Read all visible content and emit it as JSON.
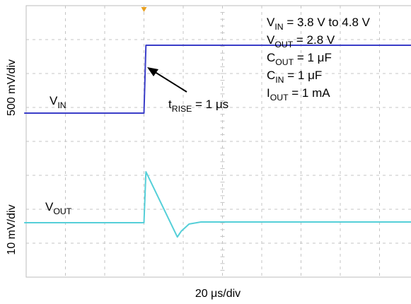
{
  "chart_data": {
    "type": "line",
    "x_scale": "20 μs/div",
    "x_divisions": 10,
    "y_divisions": 8,
    "grid": true,
    "trigger_marker_color": "#e8a020",
    "panels": [
      {
        "name": "VIN",
        "scale_label": "500 mV/div",
        "label": {
          "main": "V",
          "sub": "IN"
        },
        "color": "#3a3dc8",
        "x_unit": "us",
        "y_unit": "V",
        "x": [
          -50,
          11,
          12,
          150
        ],
        "y": [
          3.8,
          3.8,
          4.8,
          4.8
        ]
      },
      {
        "name": "VOUT",
        "scale_label": "10 mV/div",
        "label": {
          "main": "V",
          "sub": "OUT"
        },
        "color": "#55cfd8",
        "x_unit": "us",
        "y_unit": "mV (AC coupled, offset from 2.8 V)",
        "x": [
          -50,
          11,
          12,
          28,
          30,
          34,
          40,
          60,
          150
        ],
        "y": [
          0,
          0,
          15.0,
          -4.2,
          -2.5,
          -0.4,
          0.2,
          0.2,
          0.2
        ]
      }
    ],
    "annotations": {
      "rise": {
        "main": "t",
        "sub": "RISE",
        "tail": " = 1 μs"
      },
      "conditions": [
        {
          "main": "V",
          "sub": "IN",
          "tail": " = 3.8 V to 4.8 V"
        },
        {
          "main": "V",
          "sub": "OUT",
          "tail": " = 2.8 V"
        },
        {
          "main": "C",
          "sub": "OUT",
          "tail": " = 1 μF"
        },
        {
          "main": "C",
          "sub": "IN",
          "tail": " = 1 μF"
        },
        {
          "main": "I",
          "sub": "OUT",
          "tail": " = 1 mA"
        }
      ]
    }
  }
}
